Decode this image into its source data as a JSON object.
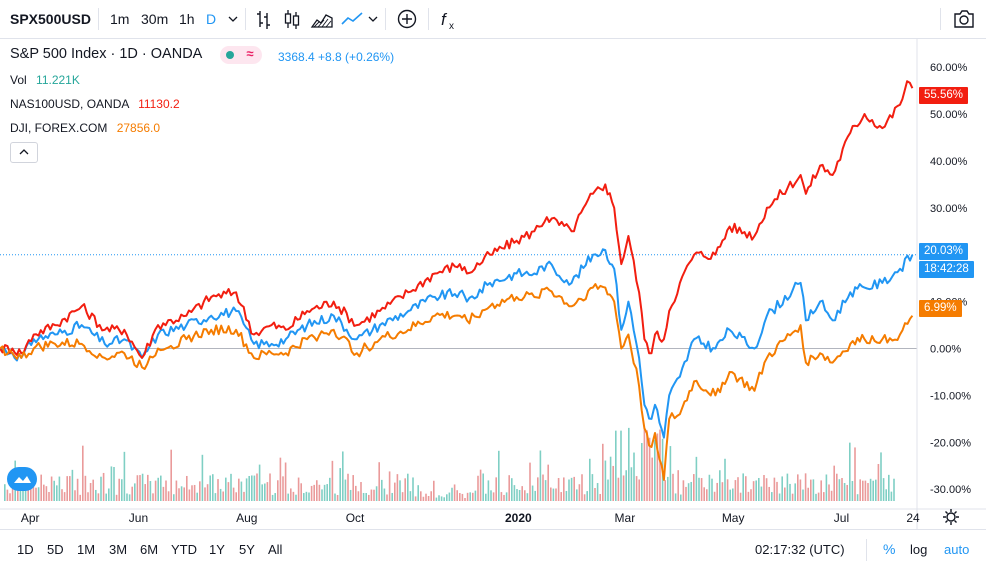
{
  "toolbar": {
    "symbol": "SPX500USD",
    "intervals": [
      "1m",
      "30m",
      "1h",
      "D"
    ],
    "active_interval": "D",
    "icons": [
      "chevron-down-icon",
      "bar-style-icon",
      "candle-style-icon",
      "area-style-icon",
      "line-style-icon",
      "compare-add-icon",
      "indicators-icon",
      "camera-icon"
    ]
  },
  "legend": {
    "main_title": "S&P 500 Index · 1D · OANDA",
    "main_values": "3368.4  +8.8 (+0.26%)",
    "vol_label": "Vol",
    "vol_value": "11.221K",
    "nas_label": "NAS100USD, OANDA",
    "nas_value": "11130.2",
    "dji_label": "DJI, FOREX.COM",
    "dji_value": "27856.0"
  },
  "price_tags": {
    "nas": "55.56%",
    "spx": "20.03%",
    "countdown": "18:42:28",
    "dji": "6.99%"
  },
  "bottombar": {
    "ranges": [
      "1D",
      "5D",
      "1M",
      "3M",
      "6M",
      "YTD",
      "1Y",
      "5Y",
      "All"
    ],
    "clock": "02:17:32 (UTC)",
    "percent": "%",
    "log": "log",
    "auto": "auto",
    "corner_day": "24"
  },
  "chart_data": {
    "type": "line",
    "y_unit": "% change",
    "ylim": [
      -34,
      66
    ],
    "yticks": [
      "60.00%",
      "50.00%",
      "40.00%",
      "30.00%",
      "20.00%",
      "10.00%",
      "0.00%",
      "-10.00%",
      "-20.00%",
      "-30.00%"
    ],
    "ytick_values": [
      60,
      50,
      40,
      30,
      20,
      10,
      0,
      -10,
      -20,
      -30
    ],
    "xticks": [
      "Apr",
      "Jun",
      "Aug",
      "Oct",
      "2020",
      "Mar",
      "May",
      "Jul"
    ],
    "xtick_dates": [
      "2019-04-01",
      "2019-06-01",
      "2019-08-01",
      "2019-10-01",
      "2020-01-01",
      "2020-03-01",
      "2020-05-01",
      "2020-07-01"
    ],
    "x_start": "2019-03-15",
    "x_end": "2020-08-12",
    "colors": {
      "spx": "#2196f3",
      "nas": "#f21e10",
      "dji": "#f57c00",
      "vol_up": "#ea9a9a",
      "vol_down": "#7fcfc4"
    },
    "series": [
      {
        "name": "S&P 500 Index",
        "key": "spx",
        "points": [
          [
            "2019-03-15",
            0
          ],
          [
            "2019-03-22",
            -1
          ],
          [
            "2019-03-27",
            -2
          ],
          [
            "2019-04-03",
            2
          ],
          [
            "2019-04-15",
            3
          ],
          [
            "2019-04-30",
            5
          ],
          [
            "2019-05-13",
            1
          ],
          [
            "2019-05-24",
            2
          ],
          [
            "2019-06-03",
            -2
          ],
          [
            "2019-06-12",
            3
          ],
          [
            "2019-06-28",
            5
          ],
          [
            "2019-07-12",
            7
          ],
          [
            "2019-07-26",
            8
          ],
          [
            "2019-08-05",
            1
          ],
          [
            "2019-08-15",
            1
          ],
          [
            "2019-08-23",
            2
          ],
          [
            "2019-09-04",
            5
          ],
          [
            "2019-09-19",
            7
          ],
          [
            "2019-10-02",
            2
          ],
          [
            "2019-10-15",
            5
          ],
          [
            "2019-10-31",
            8
          ],
          [
            "2019-11-15",
            11
          ],
          [
            "2019-11-29",
            12
          ],
          [
            "2019-12-03",
            10
          ],
          [
            "2019-12-16",
            14
          ],
          [
            "2019-12-31",
            16
          ],
          [
            "2020-01-10",
            16
          ],
          [
            "2020-01-17",
            18
          ],
          [
            "2020-01-31",
            14
          ],
          [
            "2020-02-12",
            20
          ],
          [
            "2020-02-19",
            21
          ],
          [
            "2020-02-24",
            17
          ],
          [
            "2020-02-28",
            4
          ],
          [
            "2020-03-03",
            10
          ],
          [
            "2020-03-09",
            -2
          ],
          [
            "2020-03-12",
            -12
          ],
          [
            "2020-03-16",
            -15
          ],
          [
            "2020-03-18",
            -12
          ],
          [
            "2020-03-23",
            -19
          ],
          [
            "2020-03-26",
            -10
          ],
          [
            "2020-04-01",
            -6
          ],
          [
            "2020-04-09",
            2
          ],
          [
            "2020-04-21",
            0
          ],
          [
            "2020-04-29",
            4
          ],
          [
            "2020-05-13",
            0
          ],
          [
            "2020-05-20",
            7
          ],
          [
            "2020-06-08",
            14
          ],
          [
            "2020-06-11",
            6
          ],
          [
            "2020-06-19",
            10
          ],
          [
            "2020-06-26",
            6
          ],
          [
            "2020-07-06",
            12
          ],
          [
            "2020-07-14",
            13
          ],
          [
            "2020-07-24",
            14
          ],
          [
            "2020-08-03",
            17
          ],
          [
            "2020-08-10",
            20
          ]
        ]
      },
      {
        "name": "NAS100USD, OANDA",
        "key": "nas",
        "points": [
          [
            "2019-03-15",
            0
          ],
          [
            "2019-03-22",
            0
          ],
          [
            "2019-03-27",
            -1
          ],
          [
            "2019-04-03",
            3
          ],
          [
            "2019-04-15",
            5
          ],
          [
            "2019-04-30",
            9
          ],
          [
            "2019-05-13",
            4
          ],
          [
            "2019-05-24",
            4
          ],
          [
            "2019-06-03",
            -2
          ],
          [
            "2019-06-12",
            5
          ],
          [
            "2019-06-28",
            7
          ],
          [
            "2019-07-12",
            11
          ],
          [
            "2019-07-26",
            12
          ],
          [
            "2019-08-05",
            3
          ],
          [
            "2019-08-15",
            5
          ],
          [
            "2019-08-23",
            4
          ],
          [
            "2019-09-04",
            8
          ],
          [
            "2019-09-19",
            10
          ],
          [
            "2019-10-02",
            5
          ],
          [
            "2019-10-15",
            8
          ],
          [
            "2019-10-31",
            12
          ],
          [
            "2019-11-15",
            16
          ],
          [
            "2019-11-29",
            18
          ],
          [
            "2019-12-03",
            16
          ],
          [
            "2019-12-16",
            20
          ],
          [
            "2019-12-31",
            23
          ],
          [
            "2020-01-10",
            25
          ],
          [
            "2020-01-17",
            28
          ],
          [
            "2020-01-31",
            25
          ],
          [
            "2020-02-12",
            33
          ],
          [
            "2020-02-19",
            35
          ],
          [
            "2020-02-24",
            30
          ],
          [
            "2020-02-28",
            18
          ],
          [
            "2020-03-03",
            24
          ],
          [
            "2020-03-09",
            12
          ],
          [
            "2020-03-12",
            2
          ],
          [
            "2020-03-16",
            -1
          ],
          [
            "2020-03-18",
            3
          ],
          [
            "2020-03-23",
            2
          ],
          [
            "2020-03-26",
            8
          ],
          [
            "2020-04-01",
            14
          ],
          [
            "2020-04-09",
            20
          ],
          [
            "2020-04-21",
            20
          ],
          [
            "2020-04-29",
            26
          ],
          [
            "2020-05-13",
            24
          ],
          [
            "2020-05-20",
            30
          ],
          [
            "2020-06-08",
            37
          ],
          [
            "2020-06-11",
            33
          ],
          [
            "2020-06-19",
            39
          ],
          [
            "2020-06-26",
            37
          ],
          [
            "2020-07-06",
            46
          ],
          [
            "2020-07-14",
            50
          ],
          [
            "2020-07-24",
            47
          ],
          [
            "2020-08-03",
            52
          ],
          [
            "2020-08-07",
            57
          ],
          [
            "2020-08-10",
            55.5
          ]
        ]
      },
      {
        "name": "DJI, FOREX.COM",
        "key": "dji",
        "points": [
          [
            "2019-03-15",
            0
          ],
          [
            "2019-03-22",
            -1
          ],
          [
            "2019-03-27",
            -2
          ],
          [
            "2019-04-03",
            0
          ],
          [
            "2019-04-15",
            1
          ],
          [
            "2019-04-30",
            1
          ],
          [
            "2019-05-13",
            -2
          ],
          [
            "2019-05-24",
            -1
          ],
          [
            "2019-06-03",
            -4
          ],
          [
            "2019-06-12",
            0
          ],
          [
            "2019-06-28",
            2
          ],
          [
            "2019-07-12",
            4
          ],
          [
            "2019-07-26",
            4
          ],
          [
            "2019-08-05",
            -2
          ],
          [
            "2019-08-15",
            -1
          ],
          [
            "2019-08-23",
            -1
          ],
          [
            "2019-09-04",
            2
          ],
          [
            "2019-09-19",
            4
          ],
          [
            "2019-10-02",
            -1
          ],
          [
            "2019-10-15",
            2
          ],
          [
            "2019-10-31",
            4
          ],
          [
            "2019-11-15",
            7
          ],
          [
            "2019-11-29",
            7
          ],
          [
            "2019-12-03",
            6
          ],
          [
            "2019-12-16",
            9
          ],
          [
            "2019-12-31",
            11
          ],
          [
            "2020-01-10",
            11
          ],
          [
            "2020-01-17",
            13
          ],
          [
            "2020-01-31",
            9
          ],
          [
            "2020-02-12",
            13
          ],
          [
            "2020-02-19",
            13
          ],
          [
            "2020-02-24",
            10
          ],
          [
            "2020-02-28",
            0
          ],
          [
            "2020-03-03",
            3
          ],
          [
            "2020-03-09",
            -8
          ],
          [
            "2020-03-12",
            -17
          ],
          [
            "2020-03-16",
            -21
          ],
          [
            "2020-03-18",
            -18
          ],
          [
            "2020-03-23",
            -28
          ],
          [
            "2020-03-26",
            -15
          ],
          [
            "2020-04-01",
            -14
          ],
          [
            "2020-04-09",
            -7
          ],
          [
            "2020-04-21",
            -10
          ],
          [
            "2020-04-29",
            -5
          ],
          [
            "2020-05-13",
            -9
          ],
          [
            "2020-05-20",
            -2
          ],
          [
            "2020-06-08",
            5
          ],
          [
            "2020-06-11",
            -3
          ],
          [
            "2020-06-19",
            -1
          ],
          [
            "2020-06-26",
            -3
          ],
          [
            "2020-07-06",
            1
          ],
          [
            "2020-07-14",
            2
          ],
          [
            "2020-07-24",
            2
          ],
          [
            "2020-08-03",
            3
          ],
          [
            "2020-08-10",
            7
          ]
        ]
      }
    ]
  }
}
